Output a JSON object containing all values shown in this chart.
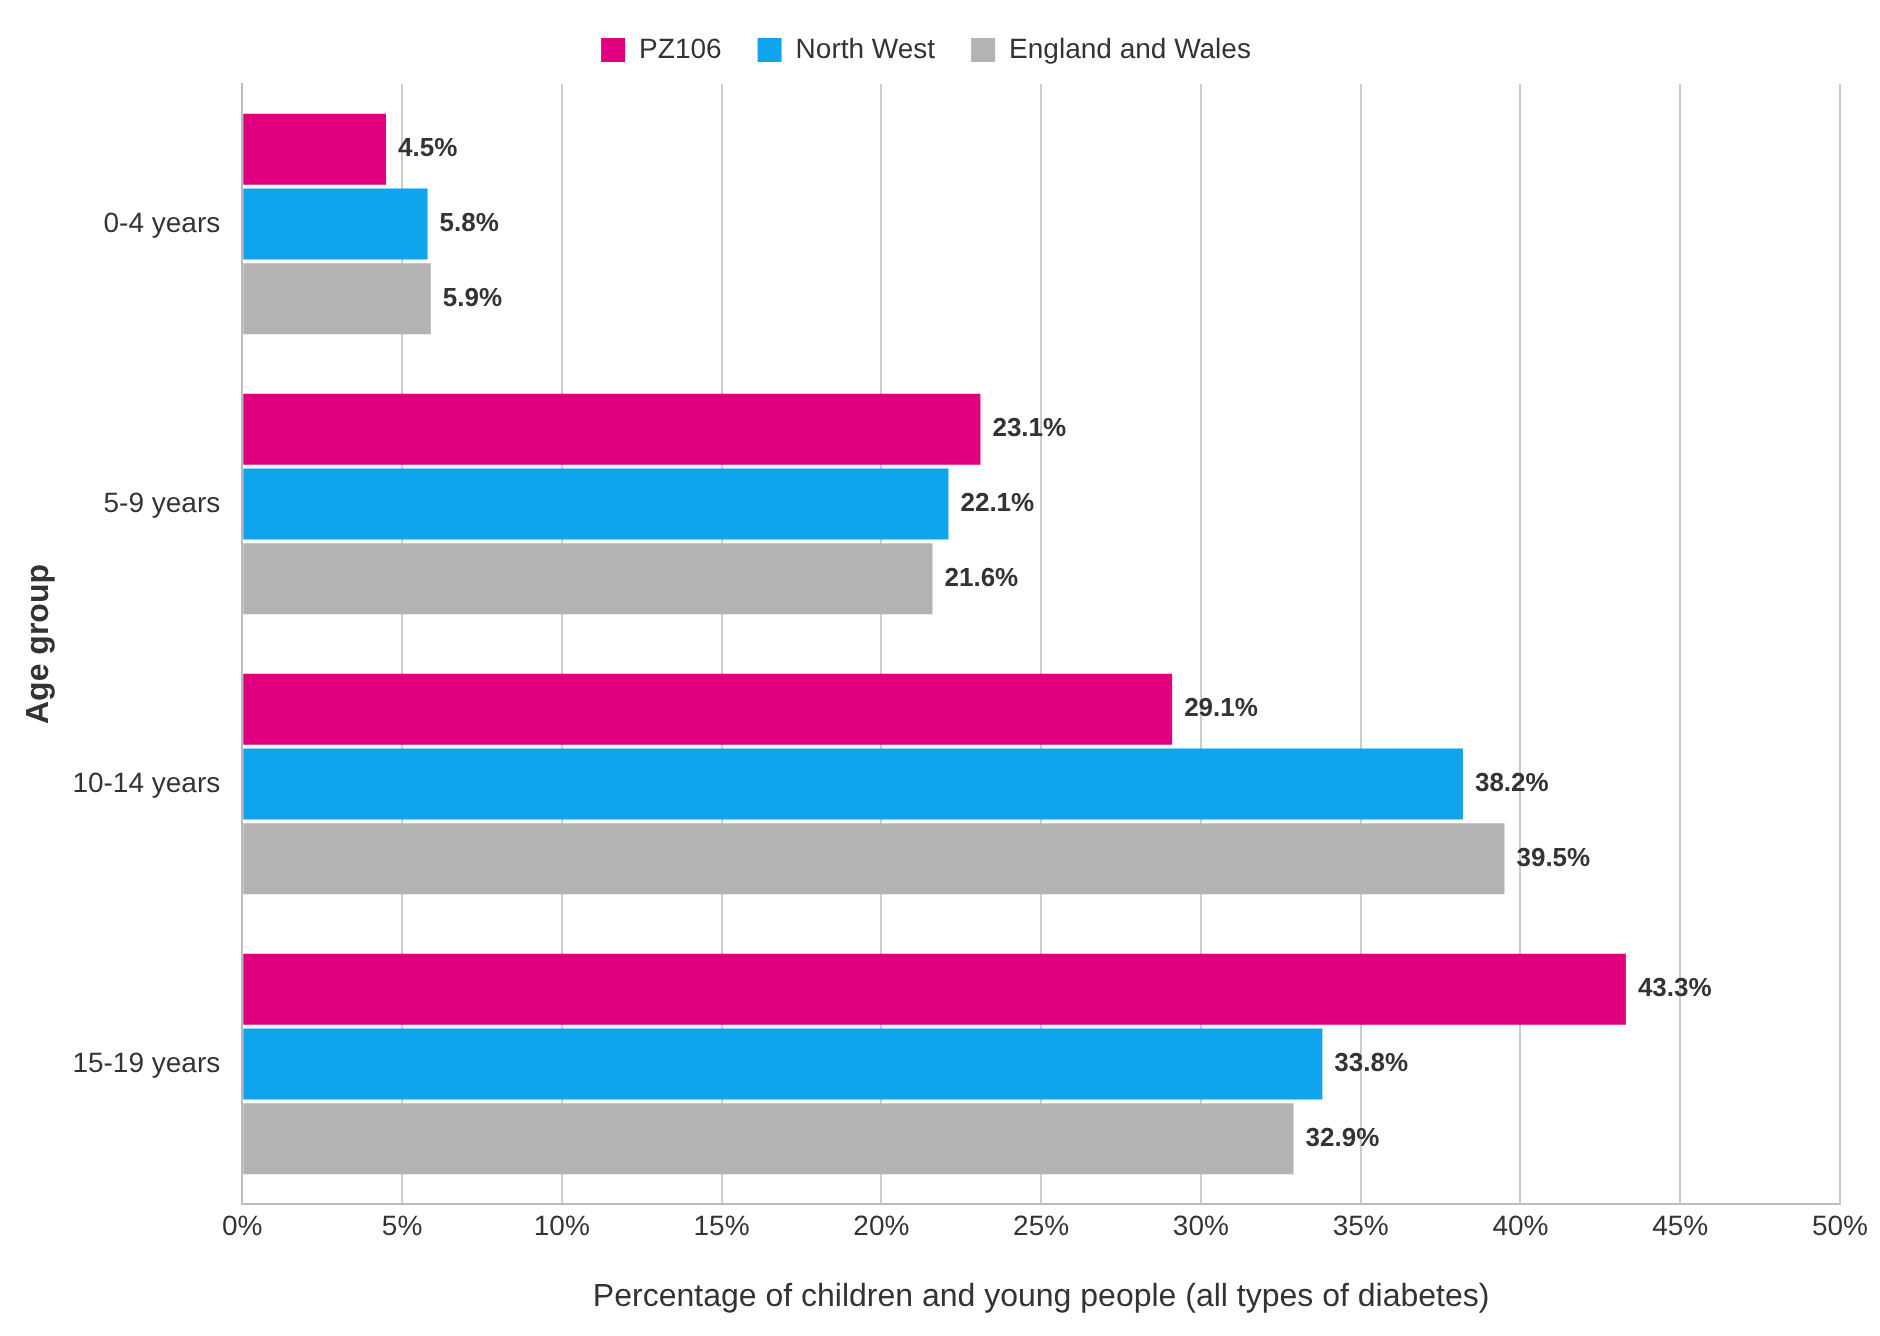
{
  "chart_data": {
    "type": "bar",
    "orientation": "horizontal",
    "xlabel": "Percentage of children and young people (all types of diabetes)",
    "ylabel": "Age group",
    "categories": [
      "0-4 years",
      "5-9 years",
      "10-14 years",
      "15-19 years"
    ],
    "series": [
      {
        "name": "PZ106",
        "color": "#e0007f",
        "values": [
          4.5,
          23.1,
          29.1,
          43.3
        ],
        "value_labels": [
          "4.5%",
          "23.1%",
          "29.1%",
          "43.3%"
        ]
      },
      {
        "name": "North West",
        "color": "#0ea5ec",
        "values": [
          5.8,
          22.1,
          38.2,
          33.8
        ],
        "value_labels": [
          "5.8%",
          "22.1%",
          "38.2%",
          "33.8%"
        ]
      },
      {
        "name": "England and Wales",
        "color": "#b3b3b3",
        "values": [
          5.9,
          21.6,
          39.5,
          32.9
        ],
        "value_labels": [
          "5.9%",
          "21.6%",
          "39.5%",
          "32.9%"
        ]
      }
    ],
    "xlim": [
      0,
      50
    ],
    "xticks": [
      {
        "value": 0,
        "label": "0%"
      },
      {
        "value": 5,
        "label": "5%"
      },
      {
        "value": 10,
        "label": "10%"
      },
      {
        "value": 15,
        "label": "15%"
      },
      {
        "value": 20,
        "label": "20%"
      },
      {
        "value": 25,
        "label": "25%"
      },
      {
        "value": 30,
        "label": "30%"
      },
      {
        "value": 35,
        "label": "35%"
      },
      {
        "value": 40,
        "label": "40%"
      },
      {
        "value": 45,
        "label": "45%"
      },
      {
        "value": 50,
        "label": "50%"
      }
    ],
    "grid": "x",
    "legend": "top"
  }
}
